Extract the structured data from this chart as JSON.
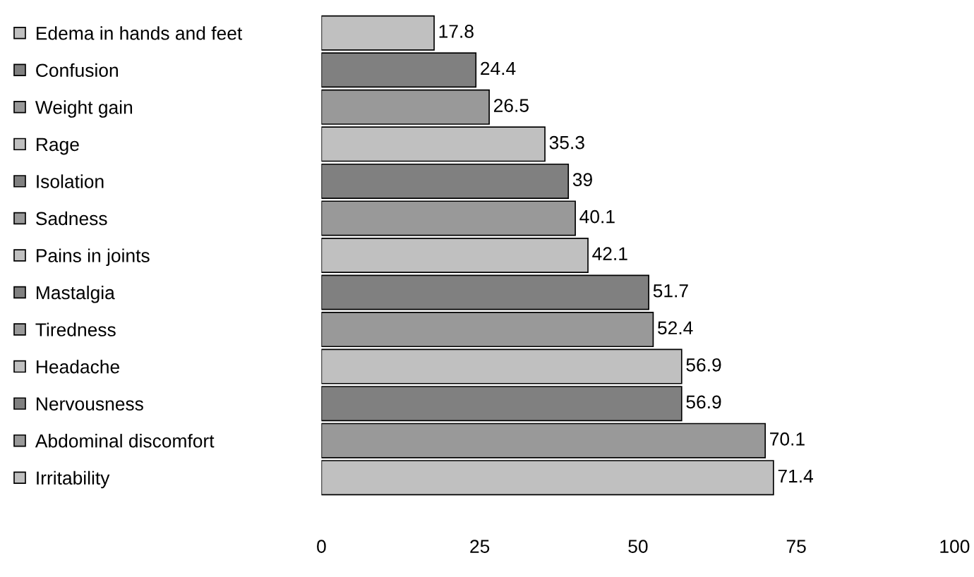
{
  "chart_data": {
    "type": "bar",
    "orientation": "horizontal",
    "categories": [
      "Edema in hands and feet",
      "Confusion",
      "Weight gain",
      "Rage",
      "Isolation",
      "Sadness",
      "Pains in joints",
      "Mastalgia",
      "Tiredness",
      "Headache",
      "Nervousness",
      "Abdominal discomfort",
      "Irritability"
    ],
    "values": [
      17.8,
      24.4,
      26.5,
      35.3,
      39,
      40.1,
      42.1,
      51.7,
      52.4,
      56.9,
      56.9,
      70.1,
      71.4
    ],
    "colors": [
      "#c0c0c0",
      "#808080",
      "#999999",
      "#c0c0c0",
      "#808080",
      "#999999",
      "#c0c0c0",
      "#808080",
      "#999999",
      "#c0c0c0",
      "#808080",
      "#999999",
      "#c0c0c0"
    ],
    "xlim": [
      0,
      100
    ],
    "xticks": [
      0,
      25,
      50,
      75,
      100
    ],
    "data_labels": true,
    "grid": false
  }
}
